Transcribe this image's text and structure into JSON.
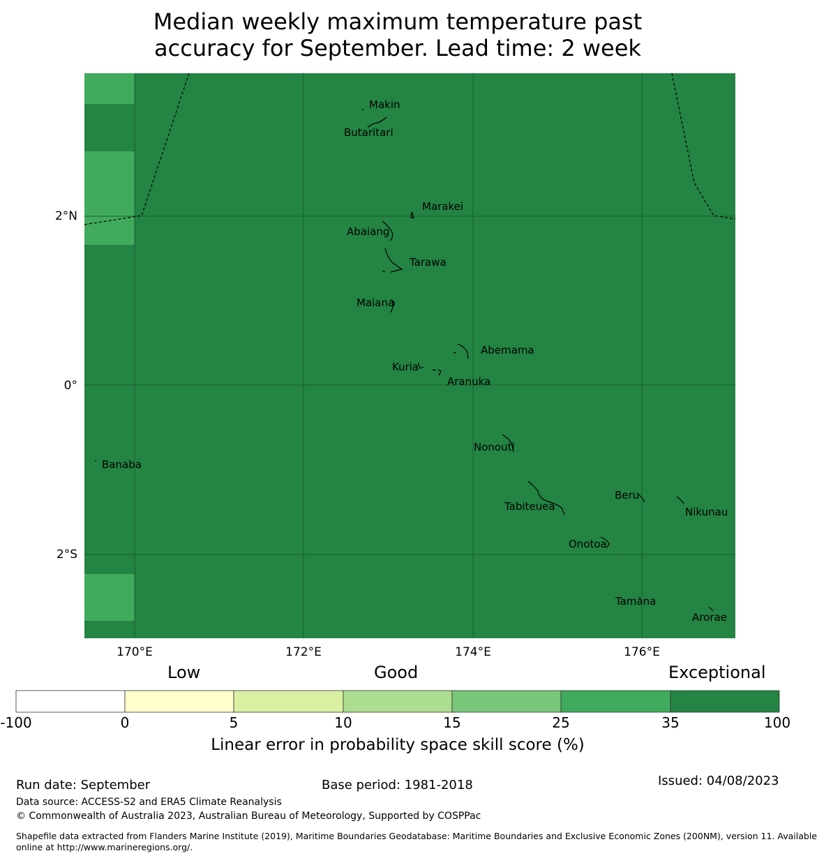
{
  "title": {
    "line1": "Median weekly maximum temperature past",
    "line2": "accuracy for September. Lead time: 2 week"
  },
  "map": {
    "colors": {
      "exceptional": "#238443",
      "light": "#41ab5d"
    },
    "lat_ticks": [
      "2°N",
      "0°",
      "2°S"
    ],
    "lon_ticks": [
      "170°E",
      "172°E",
      "174°E",
      "176°E"
    ],
    "places": [
      "Makin",
      "Butaritari",
      "Marakei",
      "Abaiang",
      "Tarawa",
      "Maiana",
      "Abemama",
      "Kuria",
      "Aranuka",
      "Banaba",
      "Nonouti",
      "Beru",
      "Tabiteuea",
      "Nikunau",
      "Onotoa",
      "Tamana",
      "Arorae"
    ]
  },
  "colorbar": {
    "category_labels": [
      "Low",
      "Good",
      "Exceptional"
    ],
    "ticks": [
      "-100",
      "0",
      "5",
      "10",
      "15",
      "25",
      "35",
      "100"
    ],
    "colors": [
      "#ffffff",
      "#ffffcc",
      "#d9f0a3",
      "#addd8e",
      "#78c679",
      "#41ab5d",
      "#238443"
    ],
    "title": "Linear error in probability space skill score (%)"
  },
  "footer": {
    "run_date": "Run date: September",
    "base_period": "Base period: 1981-2018",
    "issued": "Issued: 04/08/2023",
    "data_source": "Data source: ACCESS-S2 and ERA5 Climate Reanalysis",
    "copyright": "© Commonwealth of Australia 2023, Australian Bureau of Meteorology, Supported by COSPPac",
    "shapefile_line1": "Shapefile data extracted from Flanders Marine Institute (2019), Maritime Boundaries Geodatabase: Maritime Boundaries and Exclusive Economic Zones (200NM), version 11. Available",
    "shapefile_line2": "online at http://www.marineregions.org/."
  }
}
